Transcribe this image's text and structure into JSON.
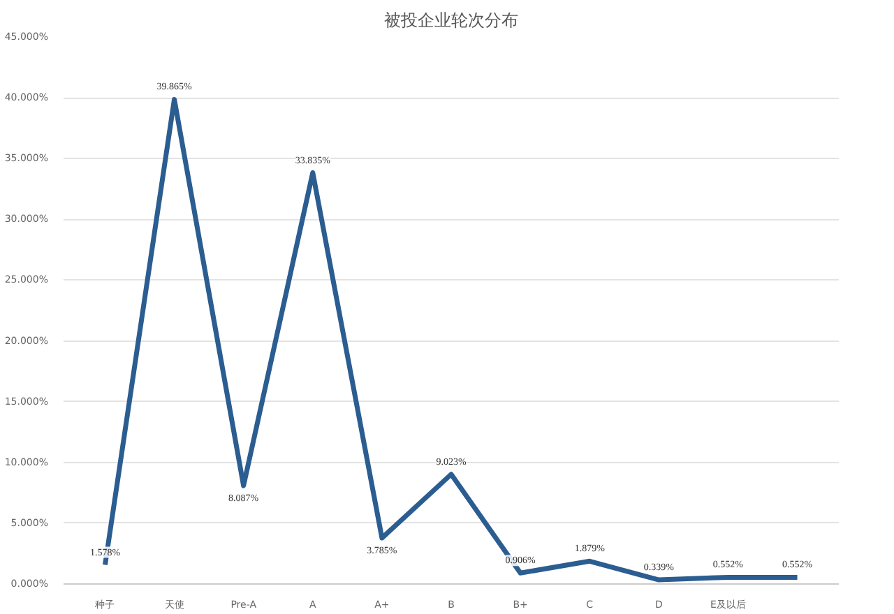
{
  "chart_data": {
    "type": "line",
    "title": "被投企业轮次分布",
    "categories": [
      "种子",
      "天使",
      "Pre-A",
      "A",
      "A+",
      "B",
      "B+",
      "C",
      "D",
      "E及以后",
      null
    ],
    "series": [
      {
        "color": "#2b5d91",
        "values": [
          1.578,
          39.865,
          8.087,
          33.835,
          3.785,
          9.023,
          0.906,
          1.879,
          0.339,
          0.552,
          0.552
        ],
        "value_labels": [
          "1.578%",
          "39.865%",
          "8.087%",
          "33.835%",
          "3.785%",
          "9.023%",
          "0.906%",
          "1.879%",
          "0.339%",
          "0.552%",
          "0.552%"
        ]
      }
    ],
    "ylim": [
      0,
      45
    ],
    "yticks": [
      {
        "value": 0,
        "label": "0.000%"
      },
      {
        "value": 5,
        "label": "5.000%"
      },
      {
        "value": 10,
        "label": "10.000%"
      },
      {
        "value": 15,
        "label": "15.000%"
      },
      {
        "value": 20,
        "label": "20.000%"
      },
      {
        "value": 25,
        "label": "25.000%"
      },
      {
        "value": 30,
        "label": "30.000%"
      },
      {
        "value": 35,
        "label": "35.000%"
      },
      {
        "value": 40,
        "label": "40.000%"
      },
      {
        "value": 45,
        "label": "45.000%"
      }
    ],
    "grid": "y",
    "marker": "none",
    "line_style": "solid"
  }
}
